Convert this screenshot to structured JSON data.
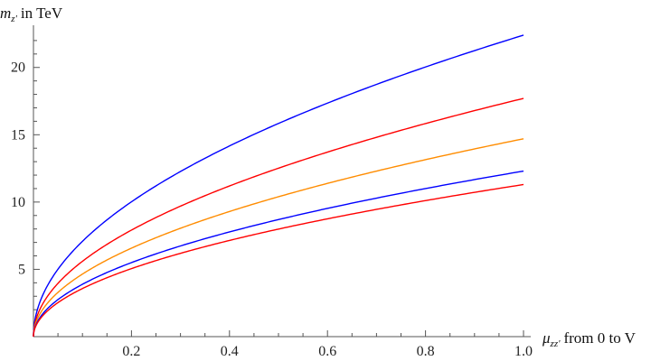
{
  "chart_data": {
    "type": "line",
    "title": "",
    "ylabel": {
      "symbol": "m",
      "subscript": "z'",
      "text": "in TeV"
    },
    "xlabel": {
      "symbol": "μ",
      "subscript": "zz'",
      "text": "from 0 to V"
    },
    "xlim": [
      0,
      1
    ],
    "ylim": [
      0,
      23
    ],
    "x_ticks_major": [
      0.2,
      0.4,
      0.6,
      0.8,
      1.0
    ],
    "x_tick_labels": [
      "0.2",
      "0.4",
      "0.6",
      "0.8",
      "1.0"
    ],
    "y_ticks_major": [
      5,
      10,
      15,
      20
    ],
    "y_tick_labels": [
      "5",
      "10",
      "15",
      "20"
    ],
    "grid": false,
    "legend": "none",
    "series": [
      {
        "color": "#0000ff",
        "coefficient": 22.4,
        "exponent": 0.5,
        "x": [
          0,
          0.1,
          0.2,
          0.4,
          0.6,
          0.8,
          1.0
        ],
        "values": [
          0,
          7.1,
          10.0,
          14.2,
          17.4,
          20.0,
          22.4
        ]
      },
      {
        "color": "#ff0000",
        "coefficient": 17.7,
        "exponent": 0.5,
        "x": [
          0,
          0.1,
          0.2,
          0.4,
          0.6,
          0.8,
          1.0
        ],
        "values": [
          0,
          5.6,
          7.9,
          11.2,
          13.7,
          15.8,
          17.7
        ]
      },
      {
        "color": "#ff8c00",
        "coefficient": 14.7,
        "exponent": 0.5,
        "x": [
          0,
          0.1,
          0.2,
          0.4,
          0.6,
          0.8,
          1.0
        ],
        "values": [
          0,
          4.6,
          6.6,
          9.3,
          11.4,
          13.1,
          14.7
        ]
      },
      {
        "color": "#0000ff",
        "coefficient": 12.3,
        "exponent": 0.5,
        "x": [
          0,
          0.1,
          0.2,
          0.4,
          0.6,
          0.8,
          1.0
        ],
        "values": [
          0,
          3.9,
          5.5,
          7.8,
          9.5,
          11.0,
          12.3
        ]
      },
      {
        "color": "#ff0000",
        "coefficient": 11.3,
        "exponent": 0.5,
        "x": [
          0,
          0.1,
          0.2,
          0.4,
          0.6,
          0.8,
          1.0
        ],
        "values": [
          0,
          3.6,
          5.1,
          7.1,
          8.8,
          10.1,
          11.3
        ]
      }
    ]
  }
}
